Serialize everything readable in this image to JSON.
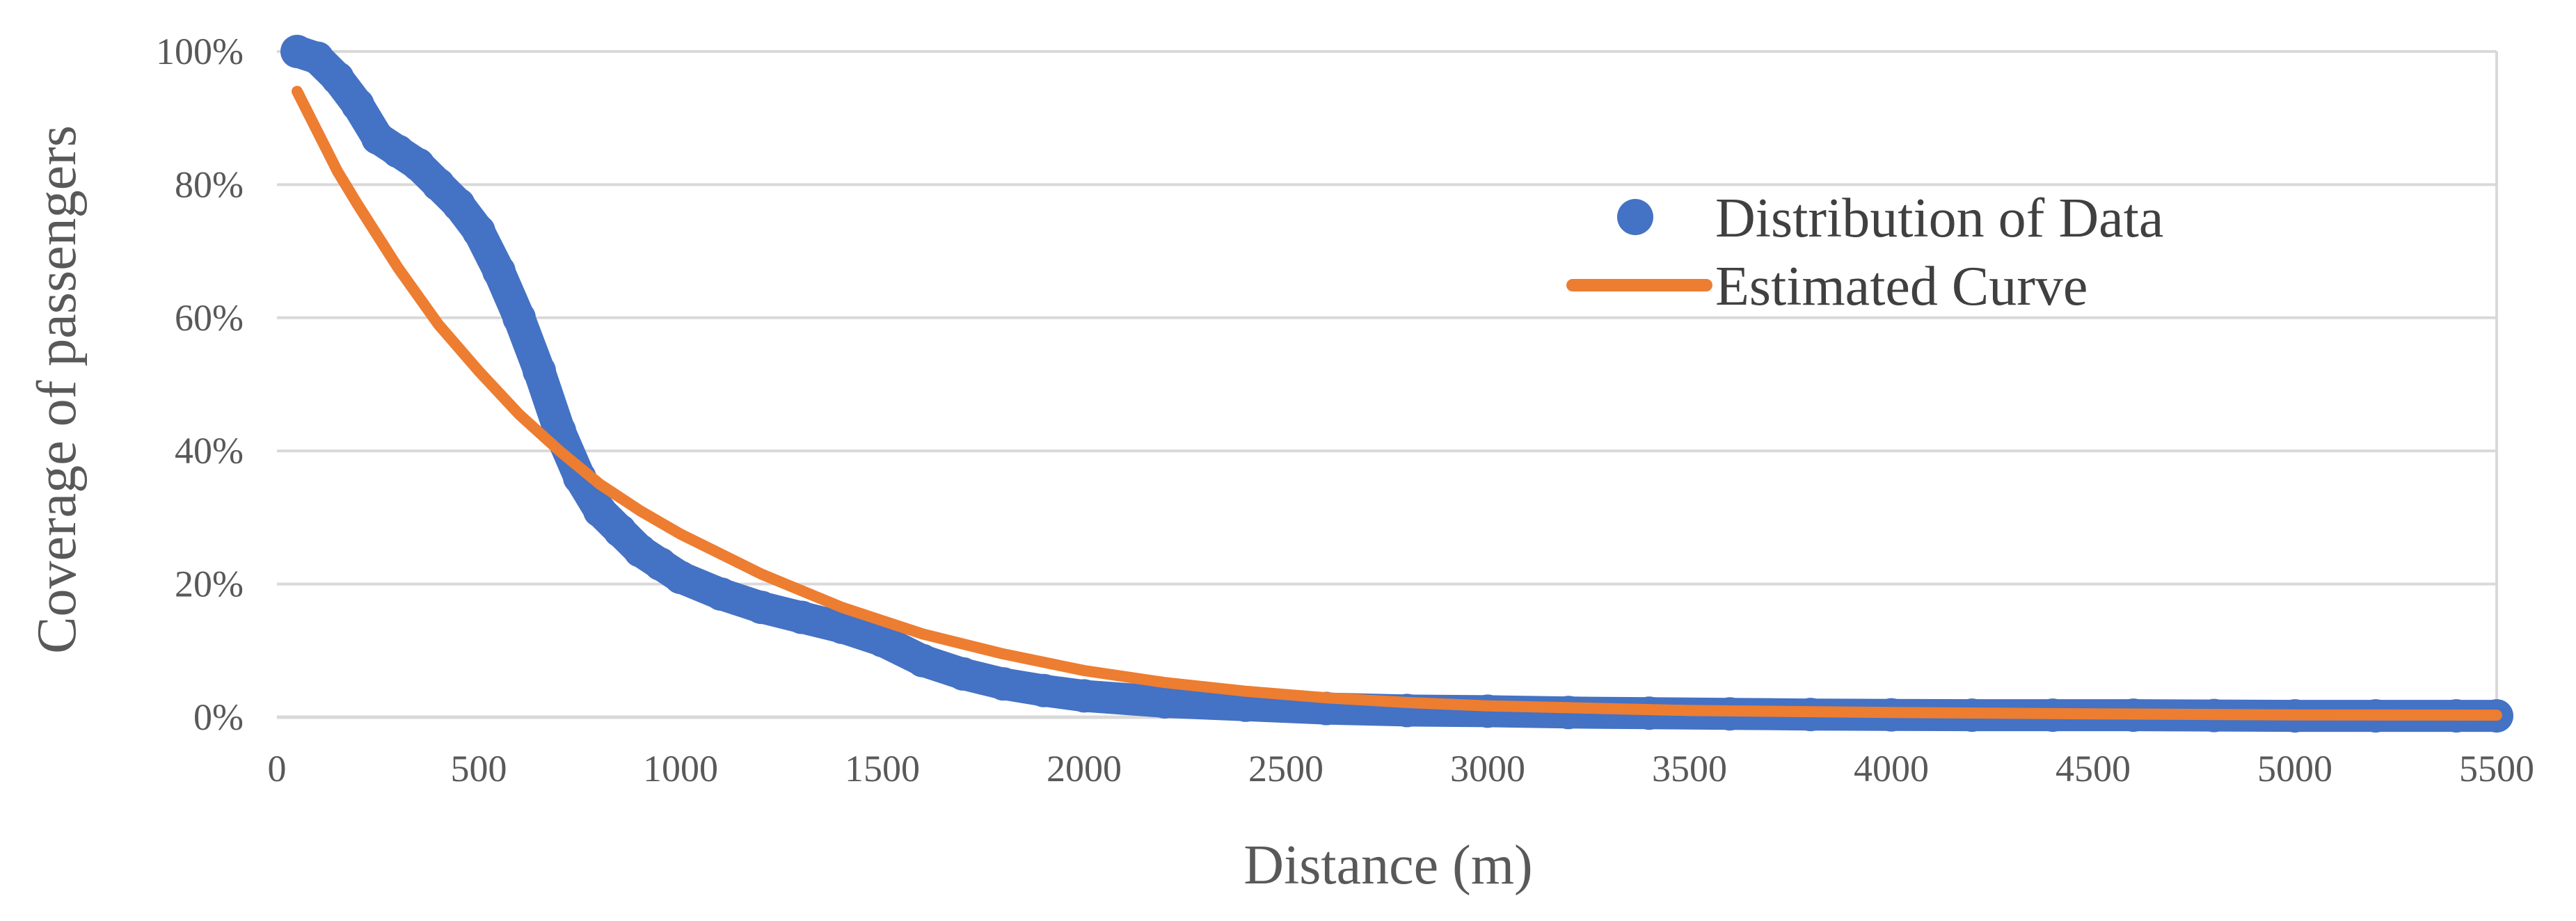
{
  "chart_data": {
    "type": "scatter",
    "title": "",
    "xlabel": "Distance (m)",
    "ylabel": "Coverage of passengers",
    "xlim": [
      0,
      5500
    ],
    "ylim": [
      0,
      100
    ],
    "x_ticks": [
      0,
      500,
      1000,
      1500,
      2000,
      2500,
      3000,
      3500,
      4000,
      4500,
      5000,
      5500
    ],
    "x_tick_labels": [
      "0",
      "500",
      "1000",
      "1500",
      "2000",
      "2500",
      "3000",
      "3500",
      "4000",
      "4500",
      "5000",
      "5500"
    ],
    "y_ticks": [
      0,
      20,
      40,
      60,
      80,
      100
    ],
    "y_tick_labels": [
      "0%",
      "20%",
      "40%",
      "60%",
      "80%",
      "100%"
    ],
    "grid": true,
    "legend_position": "top-right",
    "series": [
      {
        "name": "Distribution of Data",
        "kind": "scatter",
        "color": "#4472C4",
        "x": [
          50,
          100,
          150,
          200,
          250,
          300,
          350,
          400,
          450,
          500,
          550,
          600,
          650,
          700,
          750,
          800,
          850,
          900,
          950,
          1000,
          1100,
          1200,
          1300,
          1400,
          1500,
          1600,
          1700,
          1800,
          1900,
          2000,
          2200,
          2400,
          2600,
          2800,
          3000,
          3200,
          3400,
          3600,
          3800,
          4000,
          4200,
          4400,
          4600,
          4800,
          5000,
          5200,
          5400,
          5500
        ],
        "y": [
          100,
          99,
          96,
          92,
          87,
          85,
          83,
          80,
          77,
          73,
          67,
          60,
          52,
          43,
          36,
          31,
          28,
          25,
          23,
          21,
          18.5,
          16.5,
          15,
          13.5,
          11.5,
          8.5,
          6.5,
          5,
          4,
          3.2,
          2.3,
          1.8,
          1.3,
          1.0,
          0.9,
          0.7,
          0.6,
          0.5,
          0.4,
          0.35,
          0.3,
          0.3,
          0.3,
          0.25,
          0.2,
          0.2,
          0.2,
          0.2
        ]
      },
      {
        "name": "Estimated Curve",
        "kind": "line",
        "color": "#ED7D31",
        "x": [
          50,
          100,
          150,
          200,
          300,
          400,
          500,
          600,
          700,
          800,
          900,
          1000,
          1200,
          1400,
          1600,
          1800,
          2000,
          2200,
          2400,
          2600,
          2800,
          3000,
          3500,
          4000,
          4500,
          5000,
          5500
        ],
        "y": [
          94,
          88,
          82,
          77,
          67.5,
          59,
          52,
          45.5,
          40,
          35,
          31,
          27.5,
          21.5,
          16.5,
          12.5,
          9.5,
          7,
          5.2,
          3.9,
          2.9,
          2.2,
          1.7,
          1.0,
          0.7,
          0.5,
          0.35,
          0.3
        ]
      }
    ]
  }
}
